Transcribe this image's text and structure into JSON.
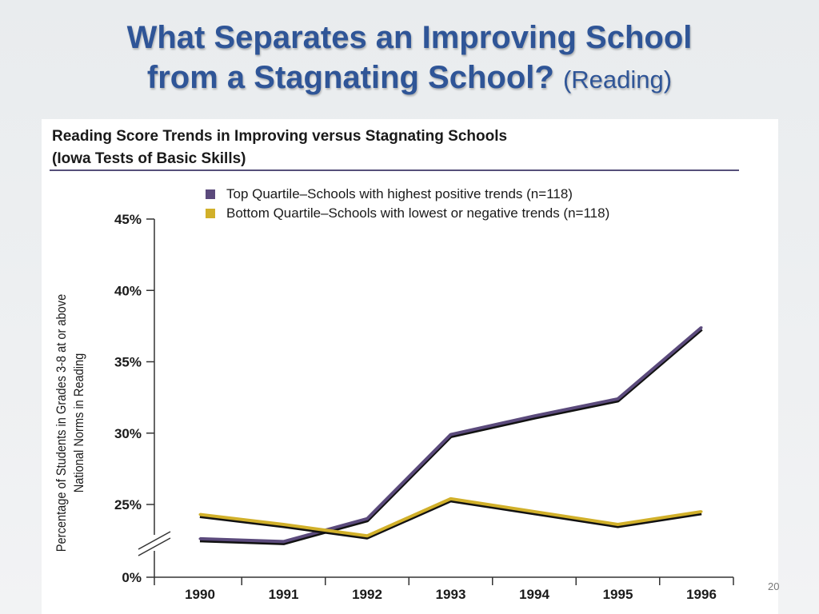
{
  "slide": {
    "title_line1": "What Separates an Improving School",
    "title_line2": "from a Stagnating School?",
    "title_sub": "(Reading)",
    "page_number": "20"
  },
  "chart_data": {
    "type": "line",
    "title": "Reading Score Trends in Improving versus Stagnating Schools",
    "subtitle": "(Iowa Tests of Basic Skills)",
    "ylabel_line1": "Percentage of Students in Grades 3-8 at or above",
    "ylabel_line2": "National Norms in Reading",
    "xlabel": "",
    "categories": [
      "1990",
      "1991",
      "1992",
      "1993",
      "1994",
      "1995",
      "1996"
    ],
    "y_ticks": [
      {
        "value": 0,
        "label": "0%"
      },
      {
        "value": 25,
        "label": "25%"
      },
      {
        "value": 30,
        "label": "30%"
      },
      {
        "value": 35,
        "label": "35%"
      },
      {
        "value": 40,
        "label": "40%"
      },
      {
        "value": 45,
        "label": "45%"
      }
    ],
    "y_axis_break": true,
    "ylim": [
      0,
      45
    ],
    "legend_position": "top",
    "grid": false,
    "series": [
      {
        "name": "Top Quartile–Schools with highest positive trends (n=118)",
        "color": "#5b4a7c",
        "values": [
          22.6,
          22.4,
          24.0,
          29.9,
          31.2,
          32.4,
          37.4
        ]
      },
      {
        "name": "Bottom Quartile–Schools with lowest or negative trends (n=118)",
        "color": "#d1b02a",
        "values": [
          24.3,
          23.6,
          22.8,
          25.4,
          24.5,
          23.6,
          24.5
        ]
      }
    ]
  }
}
